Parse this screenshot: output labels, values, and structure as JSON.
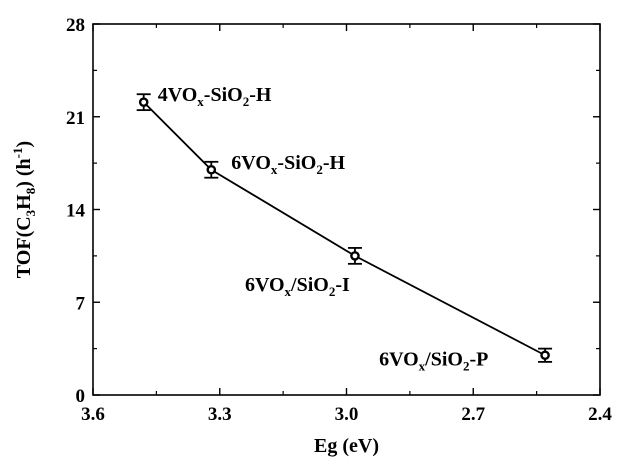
{
  "chart_data": {
    "type": "line",
    "xlabel": "Eg (eV)",
    "ylabel": {
      "parts": [
        "TOF(C",
        "3",
        "H",
        "8",
        ") (h",
        "-1",
        ")"
      ],
      "styles": [
        "n",
        "sub",
        "n",
        "sub",
        "n",
        "sup",
        "n"
      ]
    },
    "xlim": [
      3.6,
      2.4
    ],
    "ylim": [
      0,
      28
    ],
    "x_reversed": true,
    "xticks": [
      3.6,
      3.3,
      3.0,
      2.7,
      2.4
    ],
    "xtick_labels": [
      "3.6",
      "3.3",
      "3.0",
      "2.7",
      "2.4"
    ],
    "yticks": [
      0,
      7,
      14,
      21,
      28
    ],
    "ytick_labels": [
      "0",
      "7",
      "14",
      "21",
      "28"
    ],
    "grid": false,
    "series": [
      {
        "x": [
          3.48,
          3.32,
          2.98,
          2.53
        ],
        "y": [
          22.1,
          17.0,
          10.5,
          3.0
        ],
        "error": [
          0.6,
          0.6,
          0.6,
          0.5
        ],
        "marker": "circle-open",
        "color": "#000000",
        "point_labels": [
          {
            "parts": [
              "4VO",
              "x",
              "-SiO",
              "2",
              "-H"
            ],
            "styles": [
              "n",
              "sub",
              "n",
              "sub",
              "n"
            ]
          },
          {
            "parts": [
              "6VO",
              "x",
              "-SiO",
              "2",
              "-H"
            ],
            "styles": [
              "n",
              "sub",
              "n",
              "sub",
              "n"
            ]
          },
          {
            "parts": [
              "6VO",
              "x",
              "/SiO",
              "2",
              "-I"
            ],
            "styles": [
              "n",
              "sub",
              "n",
              "sub",
              "n"
            ]
          },
          {
            "parts": [
              "6VO",
              "x",
              "/SiO",
              "2",
              "-P"
            ],
            "styles": [
              "n",
              "sub",
              "n",
              "sub",
              "n"
            ]
          }
        ]
      }
    ]
  }
}
